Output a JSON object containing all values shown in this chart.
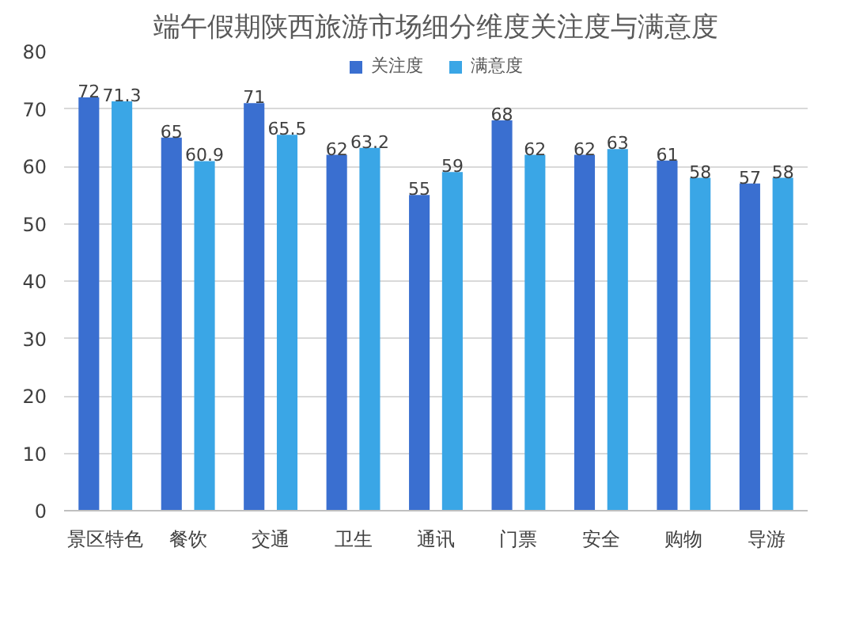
{
  "chart_data": {
    "type": "bar",
    "title": "端午假期陕西旅游市场细分维度关注度与满意度",
    "categories": [
      "景区特色",
      "餐饮",
      "交通",
      "卫生",
      "通讯",
      "门票",
      "安全",
      "购物",
      "导游"
    ],
    "series": [
      {
        "name": "关注度",
        "color": "#3a6fd0",
        "values": [
          72,
          65,
          71,
          62,
          55,
          68,
          62,
          61,
          57
        ]
      },
      {
        "name": "满意度",
        "color": "#3aa6e6",
        "values": [
          71.3,
          60.9,
          65.5,
          63.2,
          59,
          62,
          63,
          58,
          58
        ]
      }
    ],
    "ylim": [
      0,
      80
    ],
    "yticks": [
      0,
      10,
      20,
      30,
      40,
      50,
      60,
      70,
      80
    ],
    "grid": "y",
    "legend": "top",
    "data_labels": true
  }
}
